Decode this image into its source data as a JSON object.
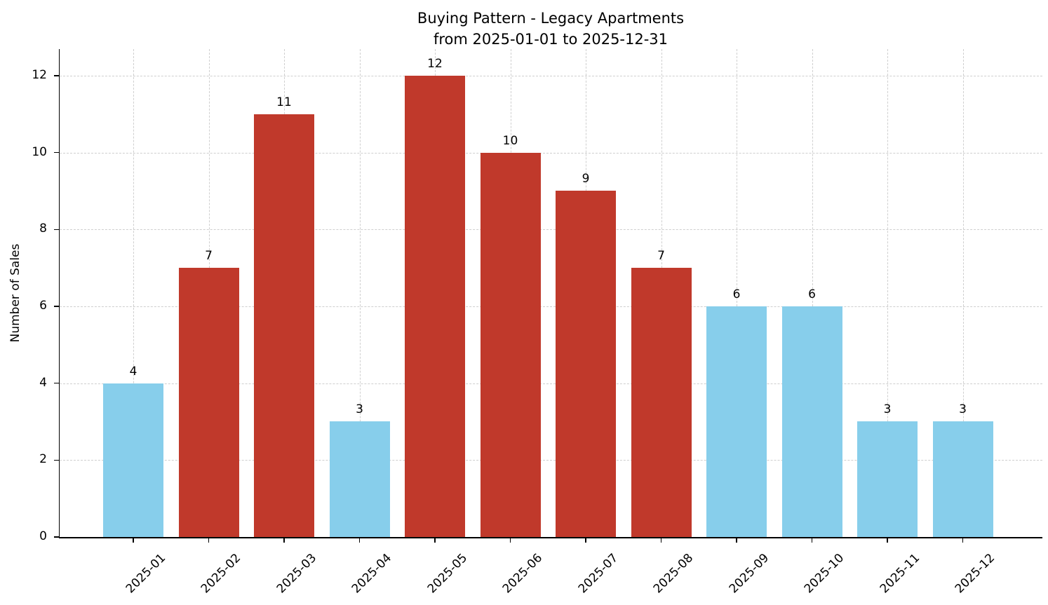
{
  "chart_data": {
    "type": "bar",
    "title": "Buying Pattern - Legacy Apartments",
    "subtitle": "from 2025-01-01 to 2025-12-31",
    "ylabel": "Number of Sales",
    "categories": [
      "2025-01",
      "2025-02",
      "2025-03",
      "2025-04",
      "2025-05",
      "2025-06",
      "2025-07",
      "2025-08",
      "2025-09",
      "2025-10",
      "2025-11",
      "2025-12"
    ],
    "values": [
      4,
      7,
      11,
      3,
      12,
      10,
      9,
      7,
      6,
      6,
      3,
      3
    ],
    "bar_colors": [
      "#87CEEB",
      "#C0392B",
      "#C0392B",
      "#87CEEB",
      "#C0392B",
      "#C0392B",
      "#C0392B",
      "#C0392B",
      "#87CEEB",
      "#87CEEB",
      "#87CEEB",
      "#87CEEB"
    ],
    "colors": {
      "high_sales": "#C0392B",
      "low_sales": "#87CEEB"
    },
    "yticks": [
      0,
      2,
      4,
      6,
      8,
      10,
      12
    ],
    "ylim": [
      0,
      12.69
    ],
    "grid": true,
    "grid_style": "dashed",
    "legend_position": "none"
  }
}
